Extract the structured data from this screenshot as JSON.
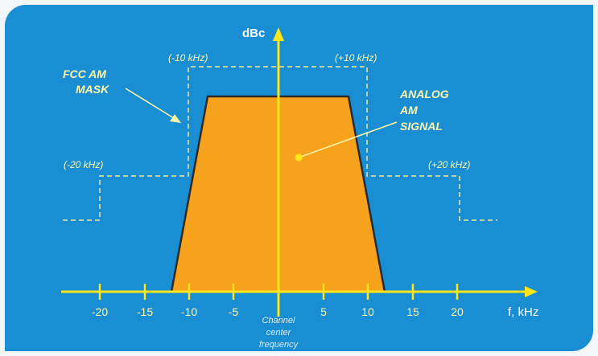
{
  "colors": {
    "background": "#1a8ed3",
    "signal": "#f7a21c",
    "axis": "#ffe51a",
    "mask": "#f2e9a0",
    "text": "#ffffff"
  },
  "axis": {
    "y_label": "dBc",
    "x_label": "f, kHz",
    "ticks": [
      "-20",
      "-15",
      "-10",
      "-5",
      "5",
      "10",
      "15",
      "20"
    ],
    "center_label": [
      "Channel",
      "center",
      "frequency"
    ]
  },
  "mask": {
    "label": [
      "FCC AM",
      "MASK"
    ],
    "inner_left": "(-10 kHz)",
    "inner_right": "(+10 kHz)",
    "outer_left": "(-20 kHz)",
    "outer_right": "(+20 kHz)"
  },
  "signal": {
    "label": [
      "ANALOG",
      "AM",
      "SIGNAL"
    ]
  }
}
